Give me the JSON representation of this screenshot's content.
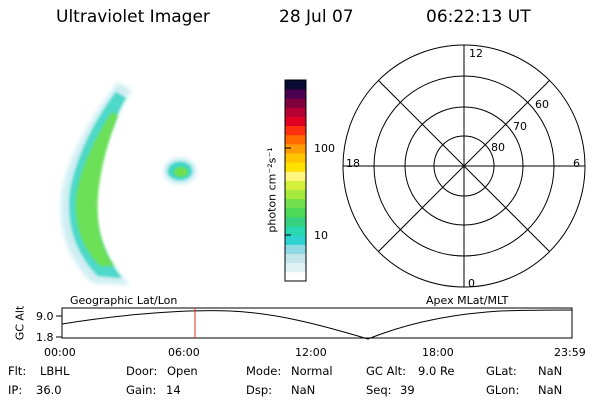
{
  "header": {
    "instrument": "Ultraviolet Imager",
    "date": "28 Jul 07",
    "time": "06:22:13 UT"
  },
  "colorbar": {
    "label": "photon cm⁻²s⁻¹",
    "tick_labels": [
      "100",
      "10"
    ],
    "colors": [
      "#ffffff",
      "#dff2f4",
      "#c4e6ea",
      "#8ed9e2",
      "#2ed3cf",
      "#28d8b0",
      "#35d080",
      "#4bd957",
      "#6fe04b",
      "#a3ea3c",
      "#d4ef3a",
      "#fff67f",
      "#ffe000",
      "#ffc400",
      "#ff9c00",
      "#ff6a00",
      "#ff3010",
      "#e00024",
      "#b40032",
      "#800040",
      "#4b0050",
      "#0a0a33"
    ]
  },
  "polar_grid": {
    "mlt_labels": {
      "top": "12",
      "left": "18",
      "right": "6",
      "bottom": "0"
    },
    "lat_labels": [
      "60",
      "70",
      "80"
    ]
  },
  "orbit_plot": {
    "left_title": "Geographic Lat/Lon",
    "right_title": "Apex  MLat/MLT",
    "y_axis_label": "GC Alt",
    "y_ticks": [
      "9.0",
      "1.8"
    ],
    "time_ticks": [
      "00:00",
      "06:00",
      "12:00",
      "18:00",
      "23:59"
    ],
    "marker_time": "06:22",
    "marker_color": "#e0301e"
  },
  "status": {
    "flt_label": "Flt:",
    "flt": "LBHL",
    "ip_label": "IP:",
    "ip": "36.0",
    "door_label": "Door:",
    "door": "Open",
    "gain_label": "Gain:",
    "gain": "14",
    "mode_label": "Mode:",
    "mode": "Normal",
    "dsp_label": "Dsp:",
    "dsp": "NaN",
    "gcalt_label": "GC Alt:",
    "gcalt": "9.0 Re",
    "seq_label": "Seq:",
    "seq": "39",
    "glat_label": "GLat:",
    "glat": "NaN",
    "glon_label": "GLon:",
    "glon": "NaN"
  }
}
